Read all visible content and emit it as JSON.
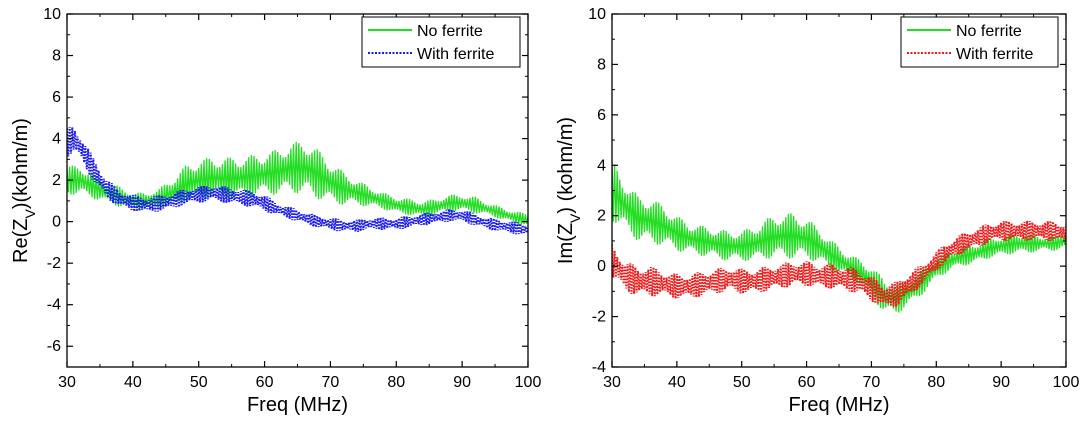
{
  "chart_data": [
    {
      "type": "line",
      "xlabel": "Freq (MHz)",
      "ylabel_main": "Re(Z",
      "ylabel_sub": "V",
      "ylabel_tail": ")(kohm/m)",
      "xlim": [
        30,
        100
      ],
      "ylim": [
        -7,
        10
      ],
      "xticks": [
        "30",
        "40",
        "50",
        "60",
        "70",
        "80",
        "90",
        "100"
      ],
      "yticks": [
        "-6",
        "-4",
        "-2",
        "0",
        "2",
        "4",
        "6",
        "8",
        "10"
      ],
      "legend_position": "top-right",
      "series": [
        {
          "name": "No ferrite",
          "color": "#22dd22",
          "style": "solid",
          "x": [
            30,
            32,
            34,
            36,
            38,
            40,
            42,
            44,
            46,
            48,
            50,
            52,
            54,
            56,
            58,
            60,
            62,
            64,
            66,
            67,
            68,
            70,
            72,
            74,
            76,
            78,
            80,
            82,
            84,
            86,
            88,
            90,
            92,
            94,
            96,
            98,
            100
          ],
          "y": [
            2.0,
            2.0,
            1.7,
            1.4,
            1.2,
            1.0,
            1.0,
            1.1,
            1.4,
            1.8,
            2.0,
            2.1,
            2.1,
            2.1,
            2.2,
            2.3,
            2.4,
            2.6,
            2.6,
            2.5,
            2.3,
            1.9,
            1.6,
            1.4,
            1.2,
            1.0,
            0.8,
            0.7,
            0.6,
            0.7,
            0.9,
            0.9,
            0.8,
            0.6,
            0.4,
            0.2,
            0.1
          ],
          "ripple": [
            0.7,
            0.7,
            0.6,
            0.5,
            0.5,
            0.4,
            0.4,
            0.5,
            0.7,
            0.9,
            1.0,
            1.0,
            1.0,
            1.0,
            1.0,
            1.0,
            1.1,
            1.2,
            1.3,
            1.3,
            1.2,
            1.0,
            0.8,
            0.6,
            0.5,
            0.4,
            0.4,
            0.4,
            0.4,
            0.4,
            0.4,
            0.4,
            0.4,
            0.3,
            0.3,
            0.3,
            0.3
          ]
        },
        {
          "name": "With ferrite",
          "color": "#1a1aee",
          "style": "dotted",
          "x": [
            30,
            31,
            32,
            34,
            36,
            38,
            40,
            42,
            44,
            46,
            48,
            50,
            52,
            54,
            56,
            58,
            60,
            62,
            64,
            66,
            68,
            70,
            72,
            74,
            76,
            78,
            80,
            82,
            84,
            86,
            88,
            90,
            92,
            94,
            96,
            98,
            100
          ],
          "y": [
            3.8,
            4.0,
            3.6,
            2.5,
            1.6,
            1.1,
            0.9,
            0.8,
            0.9,
            1.0,
            1.2,
            1.3,
            1.4,
            1.3,
            1.2,
            1.1,
            0.9,
            0.6,
            0.4,
            0.2,
            0.0,
            -0.1,
            -0.2,
            -0.2,
            -0.1,
            -0.1,
            -0.1,
            0.0,
            0.1,
            0.2,
            0.3,
            0.3,
            0.1,
            -0.1,
            -0.2,
            -0.3,
            -0.4
          ],
          "ripple": [
            0.7,
            0.7,
            0.6,
            0.6,
            0.5,
            0.4,
            0.4,
            0.4,
            0.4,
            0.4,
            0.4,
            0.4,
            0.4,
            0.4,
            0.4,
            0.4,
            0.4,
            0.3,
            0.3,
            0.3,
            0.3,
            0.3,
            0.3,
            0.3,
            0.3,
            0.3,
            0.3,
            0.3,
            0.3,
            0.3,
            0.3,
            0.3,
            0.3,
            0.3,
            0.3,
            0.3,
            0.3
          ]
        }
      ]
    },
    {
      "type": "line",
      "xlabel": "Freq (MHz)",
      "ylabel_main": "Im(Z",
      "ylabel_sub": "V",
      "ylabel_tail": ") (kohm/m)",
      "xlim": [
        30,
        100
      ],
      "ylim": [
        -4,
        10
      ],
      "xticks": [
        "30",
        "40",
        "50",
        "60",
        "70",
        "80",
        "90",
        "100"
      ],
      "yticks": [
        "-4",
        "-2",
        "0",
        "2",
        "4",
        "6",
        "8",
        "10"
      ],
      "legend_position": "top-right",
      "series": [
        {
          "name": "No ferrite",
          "color": "#22dd22",
          "style": "solid",
          "x": [
            30,
            32,
            34,
            36,
            38,
            40,
            42,
            44,
            46,
            48,
            50,
            52,
            54,
            56,
            58,
            60,
            62,
            64,
            66,
            68,
            70,
            72,
            74,
            76,
            78,
            80,
            82,
            84,
            86,
            88,
            90,
            92,
            94,
            96,
            98,
            100
          ],
          "y": [
            3.0,
            2.4,
            1.9,
            1.8,
            1.6,
            1.3,
            1.1,
            1.0,
            0.9,
            0.8,
            0.8,
            0.9,
            1.1,
            1.2,
            1.2,
            1.1,
            0.8,
            0.4,
            0.1,
            -0.2,
            -0.6,
            -1.2,
            -1.3,
            -1.0,
            -0.6,
            -0.1,
            0.2,
            0.4,
            0.5,
            0.7,
            0.8,
            0.9,
            0.9,
            0.9,
            0.9,
            1.0
          ],
          "ripple": [
            1.2,
            1.0,
            0.9,
            0.9,
            0.8,
            0.7,
            0.6,
            0.6,
            0.6,
            0.6,
            0.6,
            0.7,
            0.8,
            0.9,
            0.9,
            0.8,
            0.7,
            0.6,
            0.5,
            0.5,
            0.6,
            0.7,
            0.6,
            0.5,
            0.5,
            0.4,
            0.4,
            0.4,
            0.4,
            0.4,
            0.4,
            0.4,
            0.4,
            0.3,
            0.3,
            0.3
          ]
        },
        {
          "name": "With ferrite",
          "color": "#ee1a1a",
          "style": "dotted",
          "x": [
            30,
            32,
            34,
            36,
            38,
            40,
            42,
            44,
            46,
            48,
            50,
            52,
            54,
            56,
            58,
            60,
            62,
            64,
            66,
            68,
            70,
            72,
            74,
            76,
            78,
            80,
            82,
            84,
            86,
            88,
            90,
            92,
            94,
            96,
            98,
            100
          ],
          "y": [
            0.2,
            -0.4,
            -0.6,
            -0.6,
            -0.7,
            -0.8,
            -0.8,
            -0.7,
            -0.6,
            -0.5,
            -0.6,
            -0.6,
            -0.5,
            -0.4,
            -0.3,
            -0.3,
            -0.4,
            -0.4,
            -0.5,
            -0.6,
            -0.9,
            -1.2,
            -1.1,
            -0.7,
            -0.3,
            0.2,
            0.6,
            0.9,
            1.1,
            1.3,
            1.4,
            1.4,
            1.4,
            1.4,
            1.4,
            1.3
          ],
          "ripple": [
            0.7,
            0.6,
            0.6,
            0.6,
            0.5,
            0.5,
            0.5,
            0.5,
            0.5,
            0.5,
            0.5,
            0.5,
            0.5,
            0.5,
            0.5,
            0.5,
            0.5,
            0.5,
            0.5,
            0.5,
            0.5,
            0.5,
            0.5,
            0.5,
            0.4,
            0.4,
            0.4,
            0.4,
            0.4,
            0.4,
            0.4,
            0.4,
            0.4,
            0.4,
            0.4,
            0.4
          ]
        }
      ]
    }
  ]
}
